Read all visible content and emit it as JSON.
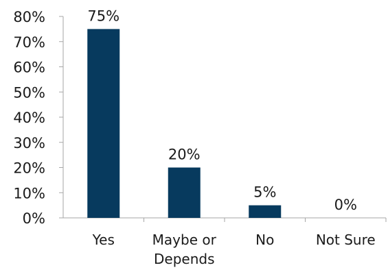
{
  "chart_data": {
    "type": "bar",
    "categories": [
      [
        "Yes"
      ],
      [
        "Maybe or",
        "Depends"
      ],
      [
        "No"
      ],
      [
        "Not Sure"
      ]
    ],
    "values": [
      75,
      20,
      5,
      0
    ],
    "data_labels": [
      "75%",
      "20%",
      "5%",
      "0%"
    ],
    "ylim": [
      0,
      80
    ],
    "yticks": [
      0,
      10,
      20,
      30,
      40,
      50,
      60,
      70,
      80
    ],
    "ytick_labels": [
      "0%",
      "10%",
      "20%",
      "30%",
      "40%",
      "50%",
      "60%",
      "70%",
      "80%"
    ],
    "bar_color": "#073a5e",
    "grid": false,
    "legend": "none",
    "title": "",
    "xlabel": "",
    "ylabel": ""
  }
}
